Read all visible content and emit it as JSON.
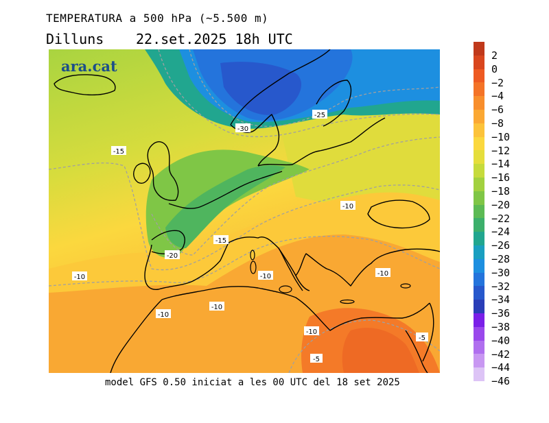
{
  "header": {
    "title": "TEMPERATURA a 500 hPa (~5.500 m)",
    "day": "Dilluns",
    "date": "22.set.2025 18h UTC"
  },
  "logo": "ara.cat",
  "footer": "model GFS 0.50 iniciat a les 00 UTC del 18 set 2025",
  "legend": {
    "entries": [
      {
        "label": "2",
        "color": "#c0391b"
      },
      {
        "label": "0",
        "color": "#d9461e"
      },
      {
        "label": "−2",
        "color": "#ee5a22"
      },
      {
        "label": "−4",
        "color": "#f47327"
      },
      {
        "label": "−6",
        "color": "#f88e2c"
      },
      {
        "label": "−8",
        "color": "#fba833"
      },
      {
        "label": "−10",
        "color": "#fcc33a"
      },
      {
        "label": "−12",
        "color": "#fbd83e"
      },
      {
        "label": "−14",
        "color": "#e5de3c"
      },
      {
        "label": "−16",
        "color": "#c6db3c"
      },
      {
        "label": "−18",
        "color": "#a2d13f"
      },
      {
        "label": "−20",
        "color": "#7fc646"
      },
      {
        "label": "−22",
        "color": "#5cba54"
      },
      {
        "label": "−24",
        "color": "#3caf6b"
      },
      {
        "label": "−26",
        "color": "#21a68f"
      },
      {
        "label": "−28",
        "color": "#1a9fc0"
      },
      {
        "label": "−30",
        "color": "#1d8fe0"
      },
      {
        "label": "−32",
        "color": "#2474dc"
      },
      {
        "label": "−34",
        "color": "#2758cc"
      },
      {
        "label": "−36",
        "color": "#2a3eb8"
      },
      {
        "label": "−38",
        "color": "#7a1fe8"
      },
      {
        "label": "−40",
        "color": "#9a48ec"
      },
      {
        "label": "−42",
        "color": "#b06fef"
      },
      {
        "label": "−44",
        "color": "#c897f2"
      },
      {
        "label": "−46",
        "color": "#ddc4f6"
      }
    ]
  },
  "map_labels": [
    {
      "text": "-30"
    },
    {
      "text": "-25"
    },
    {
      "text": "-15"
    },
    {
      "text": "-10"
    },
    {
      "text": "-15"
    },
    {
      "text": "-20"
    },
    {
      "text": "-10"
    },
    {
      "text": "-10"
    },
    {
      "text": "-10"
    },
    {
      "text": "-10"
    },
    {
      "text": "-10"
    },
    {
      "text": "-10"
    },
    {
      "text": "-5"
    },
    {
      "text": "-5"
    }
  ]
}
